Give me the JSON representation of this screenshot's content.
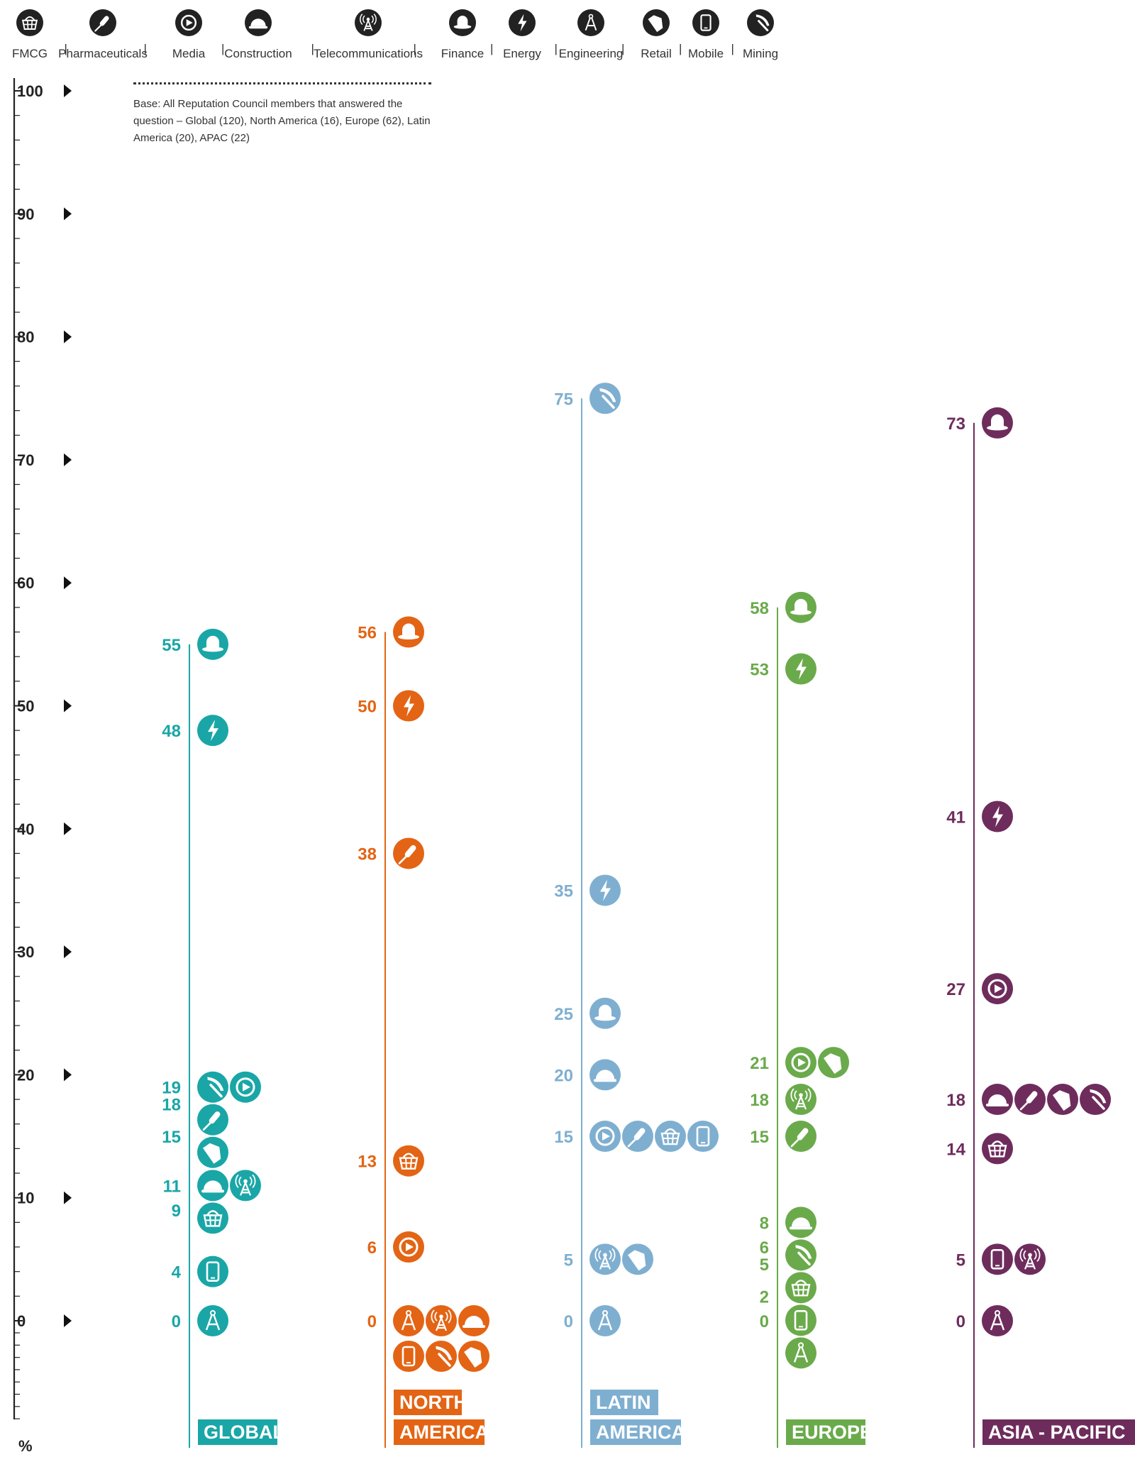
{
  "legend": {
    "items": [
      {
        "key": "fmcg",
        "label": "FMCG",
        "icon": "basket-icon"
      },
      {
        "key": "pharma",
        "label": "Pharmaceuticals",
        "icon": "dropper-icon"
      },
      {
        "key": "media",
        "label": "Media",
        "icon": "play-icon"
      },
      {
        "key": "construction",
        "label": "Construction",
        "icon": "hard-hat-icon"
      },
      {
        "key": "telecom",
        "label": "Telecommunications",
        "icon": "antenna-icon"
      },
      {
        "key": "finance",
        "label": "Finance",
        "icon": "bowler-hat-icon"
      },
      {
        "key": "energy",
        "label": "Energy",
        "icon": "lightning-icon"
      },
      {
        "key": "engineering",
        "label": "Engineering",
        "icon": "compass-icon"
      },
      {
        "key": "retail",
        "label": "Retail",
        "icon": "price-tag-icon"
      },
      {
        "key": "mobile",
        "label": "Mobile",
        "icon": "phone-icon"
      },
      {
        "key": "mining",
        "label": "Mining",
        "icon": "pickaxe-icon"
      }
    ],
    "separator": "|"
  },
  "note": {
    "text": "Base: All Reputation Council members that answered the question – Global (120), North America (16), Europe (62), Latin America (20), APAC (22)"
  },
  "chart_data": {
    "type": "scatter",
    "y_axis": {
      "range": [
        0,
        100
      ],
      "ticks": [
        0,
        10,
        20,
        30,
        40,
        50,
        60,
        70,
        80,
        90,
        100
      ],
      "unit_label": "%"
    },
    "series": [
      {
        "name": "GLOBAL",
        "label_lines": [
          "GLOBAL"
        ],
        "color": "#1aa6a6",
        "groups": [
          {
            "value": 55,
            "label": "55",
            "icons": [
              "finance"
            ]
          },
          {
            "value": 48,
            "label": "48",
            "icons": [
              "energy"
            ]
          },
          {
            "value": 19,
            "label": "19",
            "icons": [
              "mining",
              "media"
            ]
          },
          {
            "value": 18,
            "label": "18",
            "icons": [
              "pharma"
            ]
          },
          {
            "value": 15,
            "label": "15",
            "icons": [
              "retail"
            ]
          },
          {
            "value": 11,
            "label": "11",
            "icons": [
              "construction",
              "telecom"
            ]
          },
          {
            "value": 9,
            "label": "9",
            "icons": [
              "fmcg"
            ]
          },
          {
            "value": 4,
            "label": "4",
            "icons": [
              "mobile"
            ]
          },
          {
            "value": 0,
            "label": "0",
            "icons": [
              "engineering"
            ]
          }
        ]
      },
      {
        "name": "NORTH AMERICA",
        "label_lines": [
          "NORTH",
          "AMERICA"
        ],
        "color": "#e36414",
        "groups": [
          {
            "value": 56,
            "label": "56",
            "icons": [
              "finance"
            ]
          },
          {
            "value": 50,
            "label": "50",
            "icons": [
              "energy"
            ]
          },
          {
            "value": 38,
            "label": "38",
            "icons": [
              "pharma"
            ]
          },
          {
            "value": 13,
            "label": "13",
            "icons": [
              "fmcg"
            ]
          },
          {
            "value": 6,
            "label": "6",
            "icons": [
              "media"
            ]
          },
          {
            "value": 0,
            "label": "0",
            "icons": [
              "engineering",
              "telecom",
              "construction",
              "mobile",
              "mining",
              "retail"
            ]
          }
        ]
      },
      {
        "name": "LATIN AMERICA",
        "label_lines": [
          "LATIN",
          "AMERICA"
        ],
        "color": "#7fafd0",
        "groups": [
          {
            "value": 75,
            "label": "75",
            "icons": [
              "mining"
            ]
          },
          {
            "value": 35,
            "label": "35",
            "icons": [
              "energy"
            ]
          },
          {
            "value": 25,
            "label": "25",
            "icons": [
              "finance"
            ]
          },
          {
            "value": 20,
            "label": "20",
            "icons": [
              "construction"
            ]
          },
          {
            "value": 15,
            "label": "15",
            "icons": [
              "media",
              "pharma",
              "fmcg",
              "mobile"
            ]
          },
          {
            "value": 5,
            "label": "5",
            "icons": [
              "telecom",
              "retail"
            ]
          },
          {
            "value": 0,
            "label": "0",
            "icons": [
              "engineering"
            ]
          }
        ]
      },
      {
        "name": "EUROPE",
        "label_lines": [
          "EUROPE"
        ],
        "color": "#6aaa4b",
        "groups": [
          {
            "value": 58,
            "label": "58",
            "icons": [
              "finance"
            ]
          },
          {
            "value": 53,
            "label": "53",
            "icons": [
              "energy"
            ]
          },
          {
            "value": 21,
            "label": "21",
            "icons": [
              "media",
              "retail"
            ]
          },
          {
            "value": 18,
            "label": "18",
            "icons": [
              "telecom"
            ]
          },
          {
            "value": 15,
            "label": "15",
            "icons": [
              "pharma"
            ]
          },
          {
            "value": 8,
            "label": "8",
            "icons": [
              "construction"
            ]
          },
          {
            "value": 6,
            "label": "6",
            "icons": [
              "mining"
            ]
          },
          {
            "value": 5,
            "label": "5",
            "icons": [
              "fmcg"
            ]
          },
          {
            "value": 2,
            "label": "2",
            "icons": [
              "mobile"
            ]
          },
          {
            "value": 0,
            "label": "0",
            "icons": [
              "engineering"
            ]
          }
        ]
      },
      {
        "name": "ASIA - PACIFIC",
        "label_lines": [
          "ASIA - PACIFIC"
        ],
        "color": "#6e2c5c",
        "groups": [
          {
            "value": 73,
            "label": "73",
            "icons": [
              "finance"
            ]
          },
          {
            "value": 41,
            "label": "41",
            "icons": [
              "energy"
            ]
          },
          {
            "value": 27,
            "label": "27",
            "icons": [
              "media"
            ]
          },
          {
            "value": 18,
            "label": "18",
            "icons": [
              "construction",
              "pharma",
              "retail",
              "mining"
            ]
          },
          {
            "value": 14,
            "label": "14",
            "icons": [
              "fmcg"
            ]
          },
          {
            "value": 5,
            "label": "5",
            "icons": [
              "mobile",
              "telecom"
            ]
          },
          {
            "value": 0,
            "label": "0",
            "icons": [
              "engineering"
            ]
          }
        ]
      }
    ]
  }
}
